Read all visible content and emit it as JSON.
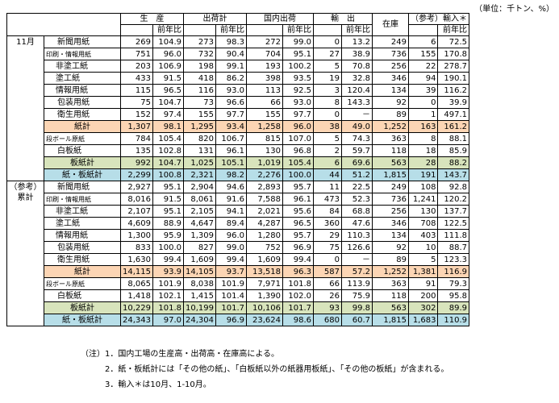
{
  "unit_label": "（単位：千トン、%）",
  "headers": {
    "top": [
      "生　産",
      "出荷計",
      "国内出荷",
      "輸　出",
      "在庫",
      "（参考）輸入＊"
    ],
    "sub": "前年比"
  },
  "sections": [
    {
      "label": [
        "11月"
      ],
      "rows": [
        {
          "label": "新聞用紙",
          "indent": "i1",
          "small": false,
          "style": "",
          "v": [
            "269",
            "104.9",
            "273",
            "98.3",
            "272",
            "99.0",
            "0",
            "13.2",
            "249",
            "6",
            "72.5"
          ]
        },
        {
          "label": "印刷・情報用紙",
          "indent": "i3",
          "small": true,
          "style": "",
          "v": [
            "751",
            "96.0",
            "732",
            "90.4",
            "704",
            "95.1",
            "27",
            "38.9",
            "736",
            "155",
            "170.8"
          ]
        },
        {
          "label": "非塗工紙",
          "indent": "i2",
          "small": false,
          "style": "",
          "v": [
            "203",
            "106.9",
            "198",
            "99.1",
            "193",
            "100.2",
            "5",
            "70.8",
            "256",
            "22",
            "278.7"
          ]
        },
        {
          "label": "塗工紙",
          "indent": "i2",
          "small": false,
          "style": "",
          "v": [
            "433",
            "91.5",
            "418",
            "86.2",
            "398",
            "93.5",
            "19",
            "32.8",
            "346",
            "94",
            "190.1"
          ]
        },
        {
          "label": "情報用紙",
          "indent": "i2",
          "small": false,
          "style": "",
          "v": [
            "115",
            "96.5",
            "116",
            "93.0",
            "113",
            "92.5",
            "3",
            "120.4",
            "134",
            "39",
            "116.2"
          ]
        },
        {
          "label": "包装用紙",
          "indent": "i1",
          "small": false,
          "style": "",
          "v": [
            "75",
            "104.7",
            "73",
            "96.6",
            "66",
            "93.0",
            "8",
            "143.3",
            "92",
            "0",
            "39.9"
          ]
        },
        {
          "label": "衛生用紙",
          "indent": "i1",
          "small": false,
          "style": "",
          "v": [
            "152",
            "97.4",
            "155",
            "97.7",
            "155",
            "97.7",
            "0",
            "－",
            "89",
            "1",
            "497.1"
          ]
        },
        {
          "label": "紙計",
          "indent": "",
          "small": false,
          "style": "orange",
          "v": [
            "1,307",
            "98.1",
            "1,295",
            "93.4",
            "1,258",
            "96.0",
            "38",
            "49.0",
            "1,252",
            "163",
            "161.2"
          ]
        },
        {
          "label": "段ボール原紙",
          "indent": "i3",
          "small": true,
          "style": "",
          "v": [
            "784",
            "105.4",
            "820",
            "106.7",
            "815",
            "107.0",
            "5",
            "74.3",
            "363",
            "8",
            "88.1"
          ]
        },
        {
          "label": "白板紙",
          "indent": "i1",
          "small": false,
          "style": "",
          "v": [
            "135",
            "102.8",
            "131",
            "96.1",
            "130",
            "96.8",
            "2",
            "59.7",
            "118",
            "18",
            "85.9"
          ]
        },
        {
          "label": "板紙計",
          "indent": "",
          "small": false,
          "style": "green",
          "v": [
            "992",
            "104.7",
            "1,025",
            "105.1",
            "1,019",
            "105.4",
            "6",
            "69.6",
            "563",
            "28",
            "88.2"
          ]
        },
        {
          "label": "紙・板紙計",
          "indent": "",
          "small": false,
          "style": "blue",
          "v": [
            "2,299",
            "100.8",
            "2,321",
            "98.2",
            "2,276",
            "100.0",
            "44",
            "51.2",
            "1,815",
            "191",
            "143.7"
          ]
        }
      ]
    },
    {
      "label": [
        "（参考）",
        "累計"
      ],
      "rows": [
        {
          "label": "新聞用紙",
          "indent": "i1",
          "small": false,
          "style": "",
          "v": [
            "2,927",
            "95.1",
            "2,904",
            "94.6",
            "2,893",
            "95.7",
            "11",
            "22.5",
            "249",
            "108",
            "92.8"
          ]
        },
        {
          "label": "印刷・情報用紙",
          "indent": "i3",
          "small": true,
          "style": "",
          "v": [
            "8,016",
            "91.5",
            "8,061",
            "91.6",
            "7,588",
            "96.1",
            "473",
            "52.3",
            "736",
            "1,241",
            "120.2"
          ]
        },
        {
          "label": "非塗工紙",
          "indent": "i2",
          "small": false,
          "style": "",
          "v": [
            "2,107",
            "95.1",
            "2,105",
            "94.1",
            "2,021",
            "95.6",
            "84",
            "68.8",
            "256",
            "130",
            "137.7"
          ]
        },
        {
          "label": "塗工紙",
          "indent": "i2",
          "small": false,
          "style": "",
          "v": [
            "4,609",
            "88.9",
            "4,647",
            "89.4",
            "4,287",
            "96.5",
            "360",
            "47.6",
            "346",
            "708",
            "122.5"
          ]
        },
        {
          "label": "情報用紙",
          "indent": "i2",
          "small": false,
          "style": "",
          "v": [
            "1,300",
            "95.9",
            "1,309",
            "96.0",
            "1,280",
            "95.7",
            "29",
            "110.3",
            "134",
            "403",
            "111.8"
          ]
        },
        {
          "label": "包装用紙",
          "indent": "i1",
          "small": false,
          "style": "",
          "v": [
            "833",
            "100.0",
            "827",
            "99.0",
            "752",
            "96.9",
            "75",
            "126.6",
            "92",
            "10",
            "88.7"
          ]
        },
        {
          "label": "衛生用紙",
          "indent": "i1",
          "small": false,
          "style": "",
          "v": [
            "1,630",
            "99.4",
            "1,609",
            "99.4",
            "1,609",
            "99.4",
            "0",
            "－",
            "89",
            "5",
            "123.3"
          ]
        },
        {
          "label": "紙計",
          "indent": "",
          "small": false,
          "style": "orange",
          "v": [
            "14,115",
            "93.9",
            "14,105",
            "93.7",
            "13,518",
            "96.3",
            "587",
            "57.2",
            "1,252",
            "1,381",
            "116.9"
          ]
        },
        {
          "label": "段ボール原紙",
          "indent": "i3",
          "small": true,
          "style": "",
          "v": [
            "8,065",
            "101.9",
            "8,038",
            "101.9",
            "7,971",
            "101.8",
            "66",
            "113.9",
            "363",
            "91",
            "79.3"
          ]
        },
        {
          "label": "白板紙",
          "indent": "i1",
          "small": false,
          "style": "",
          "v": [
            "1,418",
            "102.1",
            "1,415",
            "101.4",
            "1,390",
            "102.0",
            "26",
            "75.9",
            "118",
            "200",
            "95.8"
          ]
        },
        {
          "label": "板紙計",
          "indent": "",
          "small": false,
          "style": "green",
          "v": [
            "10,229",
            "101.8",
            "10,199",
            "101.7",
            "10,106",
            "101.7",
            "93",
            "99.8",
            "563",
            "302",
            "89.9"
          ]
        },
        {
          "label": "紙・板紙計",
          "indent": "",
          "small": false,
          "style": "blue",
          "v": [
            "24,343",
            "97.0",
            "24,304",
            "96.9",
            "23,624",
            "98.6",
            "680",
            "60.7",
            "1,815",
            "1,683",
            "110.9"
          ]
        }
      ]
    }
  ],
  "notes": [
    "（注）1．国内工場の生産高・出荷高・在庫高による。",
    "　　　2．紙・板紙計には「その他の紙」、「白板紙以外の紙器用板紙」、「その他の板紙」が含まれる。",
    "　　　3．輸入＊は10月、1-10月。"
  ],
  "colors": {
    "paper_total": "#fcd5b4",
    "board_total": "#d8e4bc",
    "grand_total": "#b7dee8"
  }
}
